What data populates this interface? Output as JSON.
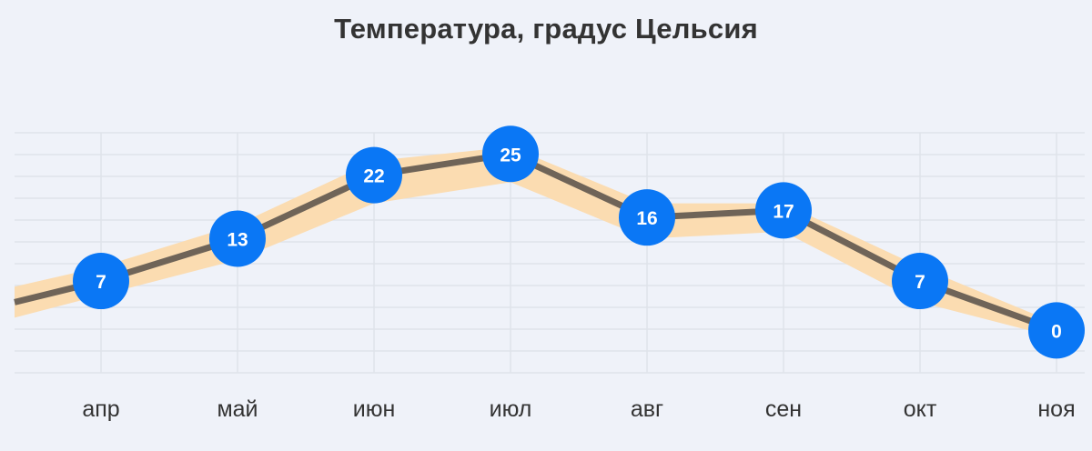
{
  "chart_data": {
    "type": "line",
    "title": "Температура, градус Цельсия",
    "categories": [
      "апр",
      "май",
      "июн",
      "июл",
      "авг",
      "сен",
      "окт",
      "ноя"
    ],
    "series": [
      {
        "values": [
          7,
          13,
          22,
          25,
          16,
          17,
          7,
          0
        ]
      }
    ],
    "band": {
      "upper": [
        9,
        15,
        24,
        26,
        18,
        18,
        9,
        1
      ],
      "lower": [
        5,
        10,
        18,
        21,
        13,
        14,
        4,
        -1
      ]
    },
    "leading_value": 4,
    "trailing_value": -1,
    "ylim": [
      -6,
      28
    ],
    "grid": true,
    "data_labels": true,
    "colors": {
      "line": "#6f6458",
      "band": "#fbdcb1",
      "marker": "#0a77f5",
      "marker_text": "#ffffff",
      "grid": "#dfe3ea"
    }
  }
}
